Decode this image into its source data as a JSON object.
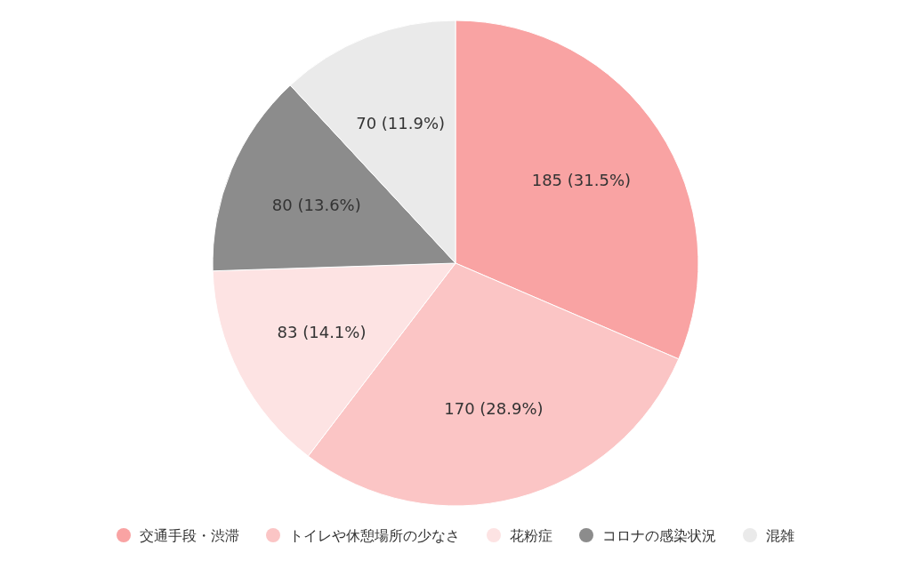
{
  "chart_data": {
    "type": "pie",
    "categories": [
      "交通手段・渋滞",
      "トイレや休憩場所の少なさ",
      "花粉症",
      "コロナの感染状況",
      "混雑"
    ],
    "values": [
      185,
      170,
      83,
      80,
      70
    ],
    "colors": [
      "#f9a3a3",
      "#fbc5c5",
      "#fde3e3",
      "#8c8c8c",
      "#eaeaea"
    ],
    "value_labels": [
      "185 (31.5%)",
      "170 (28.9%)",
      "83 (14.1%)",
      "80 (13.6%)",
      "70 (11.9%)"
    ],
    "legend": "bottom"
  }
}
